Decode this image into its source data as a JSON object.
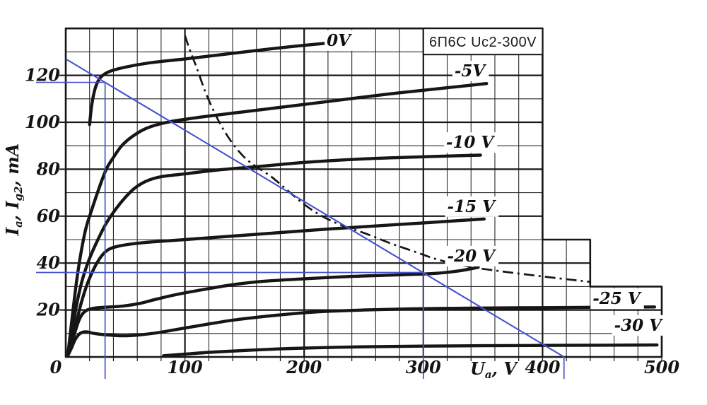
{
  "title_box_text": "6П6С  Uc2-300V",
  "axes": {
    "x_axis_title_parts": [
      {
        "t": "U"
      },
      {
        "t": "a",
        "sub": true
      },
      {
        "t": ", V"
      }
    ],
    "y_axis_title_parts": [
      {
        "t": "I"
      },
      {
        "t": "a",
        "sub": true
      },
      {
        "t": ", I"
      },
      {
        "t": "g2",
        "sub": true
      },
      {
        "t": ", mA"
      }
    ],
    "x_tick_labels": [
      "0",
      "100",
      "200",
      "300",
      "400",
      "500"
    ],
    "y_tick_labels": [
      "20",
      "40",
      "60",
      "80",
      "100",
      "120"
    ]
  },
  "chart_data": {
    "type": "line",
    "title": "6П6С  Uc2-300V",
    "xlabel": "Ua, V",
    "ylabel": "Ia, Ig2, mA",
    "x_range": [
      0,
      500
    ],
    "y_range": [
      0,
      140
    ],
    "x_ticks": [
      0,
      100,
      200,
      300,
      400,
      500
    ],
    "y_ticks": [
      20,
      40,
      60,
      80,
      100,
      120
    ],
    "x_minor_step": 20,
    "y_minor_step": 10,
    "grid_on": true,
    "grid_outline": [
      [
        0,
        140
      ],
      [
        400,
        140
      ],
      [
        400,
        50
      ],
      [
        440,
        50
      ],
      [
        440,
        30
      ],
      [
        500,
        30
      ],
      [
        500,
        0
      ],
      [
        0,
        0
      ]
    ],
    "colors": {
      "ink": "#161616",
      "grid_minor": "#2a2a2a",
      "blue": "#4553cb",
      "paper": "#ffffff"
    },
    "series": [
      {
        "name": "0V",
        "label": "0V",
        "label_pos": [
          229,
          135
        ],
        "points": [
          [
            20,
            99
          ],
          [
            22,
            108
          ],
          [
            25,
            115
          ],
          [
            29,
            119
          ],
          [
            36,
            121.5
          ],
          [
            50,
            123.5
          ],
          [
            70,
            125.3
          ],
          [
            100,
            127
          ],
          [
            130,
            128.8
          ],
          [
            160,
            130.6
          ],
          [
            190,
            132.3
          ],
          [
            219,
            133.7
          ]
        ]
      },
      {
        "name": "-5V",
        "label": "-5V",
        "label_pos": [
          339,
          122
        ],
        "points": [
          [
            2,
            2
          ],
          [
            5,
            15
          ],
          [
            9,
            32
          ],
          [
            13,
            45
          ],
          [
            17,
            55
          ],
          [
            22,
            63
          ],
          [
            28,
            72
          ],
          [
            34,
            80
          ],
          [
            40,
            85
          ],
          [
            47,
            90
          ],
          [
            56,
            94
          ],
          [
            68,
            97.5
          ],
          [
            85,
            100
          ],
          [
            110,
            102
          ],
          [
            150,
            104.5
          ],
          [
            190,
            107
          ],
          [
            230,
            109.5
          ],
          [
            270,
            112
          ],
          [
            310,
            114.2
          ],
          [
            353,
            116.5
          ]
        ]
      },
      {
        "name": "-10V",
        "label": "-10 V",
        "label_pos": [
          339,
          91.5
        ],
        "points": [
          [
            2,
            1.5
          ],
          [
            5,
            10
          ],
          [
            9,
            22
          ],
          [
            14,
            33
          ],
          [
            20,
            42
          ],
          [
            27,
            50
          ],
          [
            34,
            57
          ],
          [
            42,
            63
          ],
          [
            50,
            68
          ],
          [
            58,
            72
          ],
          [
            68,
            75
          ],
          [
            80,
            76.8
          ],
          [
            100,
            78
          ],
          [
            130,
            79.8
          ],
          [
            165,
            81.3
          ],
          [
            200,
            82.9
          ],
          [
            250,
            84.4
          ],
          [
            300,
            85.3
          ],
          [
            348,
            86
          ]
        ]
      },
      {
        "name": "-15V",
        "label": "-15 V",
        "label_pos": [
          340,
          64.2
        ],
        "points": [
          [
            2,
            1
          ],
          [
            5,
            7
          ],
          [
            9,
            15
          ],
          [
            13,
            23
          ],
          [
            18,
            31
          ],
          [
            24,
            38
          ],
          [
            30,
            43
          ],
          [
            36,
            45.8
          ],
          [
            44,
            47.2
          ],
          [
            56,
            48.2
          ],
          [
            72,
            49
          ],
          [
            100,
            50
          ],
          [
            140,
            51.5
          ],
          [
            180,
            53
          ],
          [
            220,
            54.5
          ],
          [
            260,
            55.8
          ],
          [
            300,
            57.1
          ],
          [
            330,
            58.1
          ],
          [
            351,
            58.8
          ]
        ]
      },
      {
        "name": "-20V",
        "label": "-20 V",
        "label_pos": [
          340,
          43.1
        ],
        "points": [
          [
            2,
            1
          ],
          [
            5,
            6
          ],
          [
            8,
            11
          ],
          [
            11,
            15.5
          ],
          [
            14,
            18.3
          ],
          [
            18,
            20
          ],
          [
            24,
            20.8
          ],
          [
            34,
            21.2
          ],
          [
            48,
            21.7
          ],
          [
            62,
            22.8
          ],
          [
            76,
            24.6
          ],
          [
            92,
            26.5
          ],
          [
            111,
            28.3
          ],
          [
            139,
            30.7
          ],
          [
            165,
            32.2
          ],
          [
            200,
            33.3
          ],
          [
            240,
            34.3
          ],
          [
            280,
            35
          ],
          [
            310,
            35.6
          ],
          [
            330,
            36.7
          ],
          [
            346,
            38.2
          ]
        ]
      },
      {
        "name": "-25V",
        "label": "-25 V",
        "label_pos": [
          462,
          25
        ],
        "points": [
          [
            2,
            0.8
          ],
          [
            5,
            4
          ],
          [
            8,
            7.5
          ],
          [
            12,
            10
          ],
          [
            17,
            10.7
          ],
          [
            24,
            10
          ],
          [
            34,
            9.4
          ],
          [
            48,
            9
          ],
          [
            62,
            9.4
          ],
          [
            78,
            10.4
          ],
          [
            95,
            11.9
          ],
          [
            115,
            13.6
          ],
          [
            138,
            15.5
          ],
          [
            162,
            17
          ],
          [
            190,
            18.4
          ],
          [
            218,
            19.4
          ],
          [
            250,
            20
          ],
          [
            290,
            20.5
          ],
          [
            340,
            20.8
          ],
          [
            400,
            21
          ],
          [
            460,
            21.2
          ],
          [
            494,
            21.3
          ]
        ]
      },
      {
        "name": "-30V",
        "label": "-30 V",
        "label_pos": [
          480,
          13.6
        ],
        "points": [
          [
            82,
            0.5
          ],
          [
            100,
            1.2
          ],
          [
            125,
            2.1
          ],
          [
            155,
            2.9
          ],
          [
            190,
            3.6
          ],
          [
            225,
            4.1
          ],
          [
            260,
            4.4
          ],
          [
            300,
            4.6
          ],
          [
            350,
            4.8
          ],
          [
            400,
            4.9
          ],
          [
            450,
            5
          ],
          [
            496,
            5.1
          ]
        ]
      }
    ],
    "dissipation_limit": {
      "style": "dash-dot",
      "points": [
        [
          100,
          137
        ],
        [
          104,
          131
        ],
        [
          110,
          123
        ],
        [
          117,
          113
        ],
        [
          124,
          105
        ],
        [
          131,
          98
        ],
        [
          140,
          91
        ],
        [
          150,
          85
        ],
        [
          160,
          81
        ],
        [
          172,
          77
        ],
        [
          186,
          71
        ],
        [
          200,
          65
        ],
        [
          215,
          60
        ],
        [
          232,
          56
        ],
        [
          252,
          52.5
        ],
        [
          272,
          48.5
        ],
        [
          292,
          45
        ],
        [
          312,
          41.5
        ],
        [
          338,
          38.5
        ],
        [
          365,
          36.5
        ],
        [
          405,
          34
        ],
        [
          440,
          32
        ]
      ]
    },
    "load_line": {
      "from": [
        0,
        127
      ],
      "to": [
        418,
        0
      ],
      "operating_points": [
        [
          33,
          117
        ],
        [
          300,
          36
        ]
      ]
    }
  }
}
